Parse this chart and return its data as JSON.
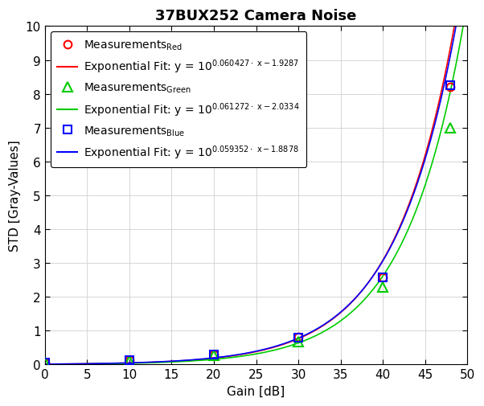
{
  "title": "37BUX252 Camera Noise",
  "xlabel": "Gain [dB]",
  "ylabel": "STD [Gray-Values]",
  "xlim": [
    0,
    50
  ],
  "ylim": [
    0,
    10
  ],
  "xticks": [
    0,
    5,
    10,
    15,
    20,
    25,
    30,
    35,
    40,
    45,
    50
  ],
  "yticks": [
    0,
    1,
    2,
    3,
    4,
    5,
    6,
    7,
    8,
    9,
    10
  ],
  "gain_points": [
    0,
    10,
    20,
    30,
    40,
    48
  ],
  "red_measurements": [
    0.07,
    0.12,
    0.3,
    0.82,
    2.58,
    8.2
  ],
  "green_measurements": [
    0.06,
    0.11,
    0.27,
    0.68,
    2.28,
    7.0
  ],
  "blue_measurements": [
    0.07,
    0.12,
    0.29,
    0.8,
    2.58,
    8.25
  ],
  "red_fit_a": 0.060427,
  "red_fit_b": -1.9287,
  "green_fit_a": 0.061272,
  "green_fit_b": -2.0334,
  "blue_fit_a": 0.059352,
  "blue_fit_b": -1.8878,
  "red_color": "#ff0000",
  "green_color": "#00cc00",
  "blue_color": "#0000ff",
  "background_color": "#ffffff",
  "grid_color": "#d0d0d0",
  "title_fontsize": 13,
  "label_fontsize": 11,
  "tick_fontsize": 11,
  "legend_fontsize": 10
}
